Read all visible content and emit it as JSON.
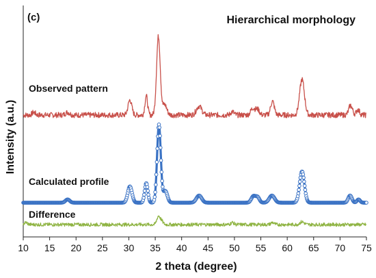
{
  "chart_data": {
    "type": "line",
    "panel_label": "(c)",
    "title": "Hierarchical morphology",
    "xlabel": "2 theta (degree)",
    "ylabel": "Intensity (a.u.)",
    "xlim": [
      10,
      75
    ],
    "xticks": [
      10,
      15,
      20,
      25,
      30,
      35,
      40,
      45,
      50,
      55,
      60,
      65,
      70,
      75
    ],
    "grid": false,
    "y_units": "arbitrary (stacked offsets, relative intensity)",
    "series": [
      {
        "name": "Observed pattern",
        "style": "line",
        "color": "#c8504a",
        "offset": 155,
        "noise": 4,
        "peaks": [
          [
            12.0,
            4,
            0.3
          ],
          [
            18.4,
            4,
            0.4
          ],
          [
            30.2,
            22,
            0.35
          ],
          [
            33.3,
            28,
            0.25
          ],
          [
            35.6,
            115,
            0.35
          ],
          [
            36.8,
            15,
            0.4
          ],
          [
            43.3,
            13,
            0.5
          ],
          [
            49.6,
            5,
            0.3
          ],
          [
            53.5,
            10,
            0.4
          ],
          [
            54.4,
            8,
            0.35
          ],
          [
            57.2,
            20,
            0.35
          ],
          [
            62.8,
            52,
            0.45
          ],
          [
            72.0,
            14,
            0.35
          ],
          [
            73.4,
            8,
            0.3
          ]
        ]
      },
      {
        "name": "Calculated profile",
        "style": "line+circles",
        "color": "#3a72c4",
        "offset": 0,
        "noise": 0,
        "peaks": [
          [
            18.4,
            5,
            0.4
          ],
          [
            30.2,
            25,
            0.4
          ],
          [
            33.3,
            30,
            0.3
          ],
          [
            35.7,
            120,
            0.35
          ],
          [
            36.9,
            18,
            0.4
          ],
          [
            43.3,
            11,
            0.5
          ],
          [
            53.6,
            10,
            0.4
          ],
          [
            54.4,
            8,
            0.35
          ],
          [
            57.1,
            11,
            0.5
          ],
          [
            62.8,
            48,
            0.45
          ],
          [
            71.9,
            11,
            0.35
          ],
          [
            73.5,
            5,
            0.3
          ]
        ]
      },
      {
        "name": "Difference",
        "style": "line",
        "color": "#8fb443",
        "offset": -28,
        "noise": 2.5,
        "peaks": [
          [
            10.5,
            3,
            0.3
          ],
          [
            35.6,
            12,
            0.3
          ],
          [
            36.2,
            5,
            0.3
          ],
          [
            62.8,
            4,
            0.4
          ],
          [
            49.6,
            3,
            0.3
          ],
          [
            57.2,
            3,
            0.3
          ]
        ]
      }
    ]
  }
}
